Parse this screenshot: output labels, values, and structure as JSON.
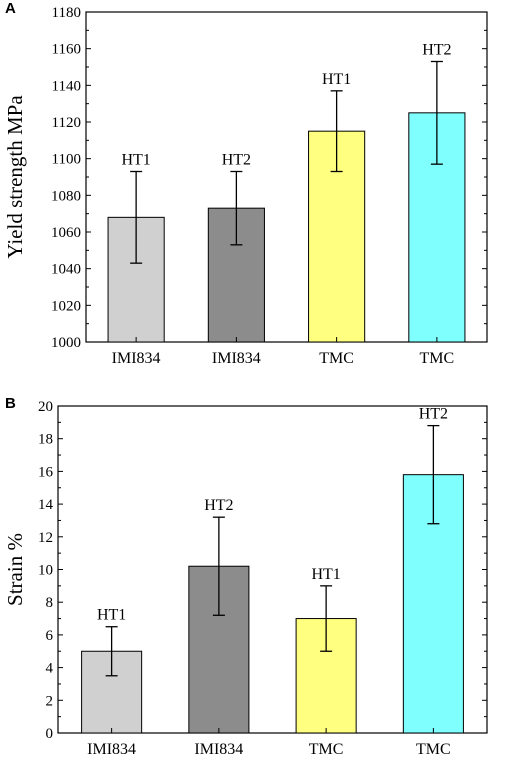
{
  "chart_data": [
    {
      "panel": "A",
      "type": "bar",
      "categories": [
        "IMI834",
        "IMI834",
        "TMC",
        "TMC"
      ],
      "bar_labels": [
        "HT1",
        "HT2",
        "HT1",
        "HT2"
      ],
      "values": [
        1068,
        1073,
        1115,
        1125
      ],
      "errors": [
        25,
        20,
        22,
        28
      ],
      "colors": [
        "#d0d0d0",
        "#8c8c8c",
        "#ffff80",
        "#80ffff"
      ],
      "ylabel": "Yield strength MPa",
      "ylim": [
        1000,
        1180
      ],
      "yticks": [
        1000,
        1020,
        1040,
        1060,
        1080,
        1100,
        1120,
        1140,
        1160,
        1180
      ],
      "grid": false
    },
    {
      "panel": "B",
      "type": "bar",
      "categories": [
        "IMI834",
        "IMI834",
        "TMC",
        "TMC"
      ],
      "bar_labels": [
        "HT1",
        "HT2",
        "HT1",
        "HT2"
      ],
      "values": [
        5.0,
        10.2,
        7.0,
        15.8
      ],
      "errors": [
        1.5,
        3.0,
        2.0,
        3.0
      ],
      "colors": [
        "#d0d0d0",
        "#8c8c8c",
        "#ffff80",
        "#80ffff"
      ],
      "ylabel": "Strain %",
      "ylim": [
        0,
        20
      ],
      "yticks": [
        0,
        2,
        4,
        6,
        8,
        10,
        12,
        14,
        16,
        18,
        20
      ],
      "grid": false
    }
  ]
}
